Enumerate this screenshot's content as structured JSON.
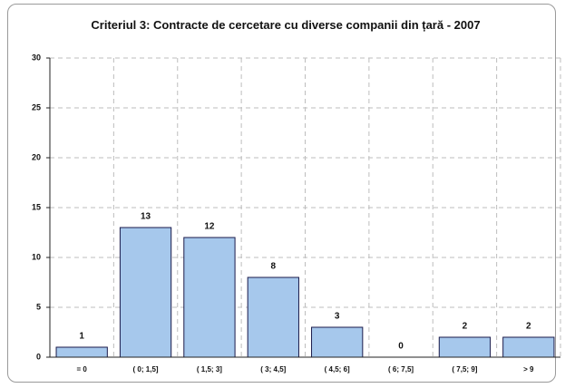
{
  "chart_data": {
    "type": "bar",
    "title": "Criteriul 3: Contracte de cercetare cu diverse companii din țară - 2007",
    "categories": [
      "= 0",
      "( 0; 1,5]",
      "( 1,5; 3]",
      "( 3; 4,5]",
      "( 4,5; 6]",
      "( 6; 7,5]",
      "( 7,5; 9]",
      "> 9"
    ],
    "values": [
      1,
      13,
      12,
      8,
      3,
      0,
      2,
      2
    ],
    "color": "#a6c8ec",
    "ylim": [
      0,
      30
    ],
    "yticks": [
      0,
      5,
      10,
      15,
      20,
      25,
      30
    ],
    "grid": true
  }
}
